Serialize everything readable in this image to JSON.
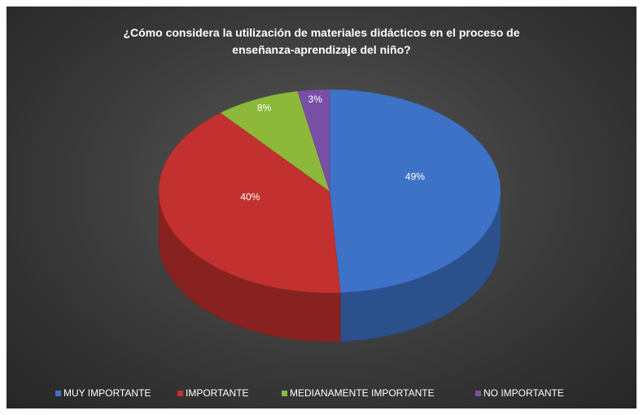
{
  "chart_data": {
    "type": "pie",
    "three_d": true,
    "title": "¿Cómo considera la utilización de materiales didácticos en el proceso de enseñanza-aprendizaje del niño?",
    "categories": [
      "MUY IMPORTANTE",
      "IMPORTANTE",
      "MEDIANAMENTE IMPORTANTE",
      "NO IMPORTANTE"
    ],
    "values": [
      49,
      40,
      8,
      3
    ],
    "value_labels": [
      "49%",
      "40%",
      "8%",
      "3%"
    ],
    "colors": [
      "#3d72c6",
      "#c2312f",
      "#8db83a",
      "#7a4fa6"
    ],
    "legend": "bottom"
  }
}
